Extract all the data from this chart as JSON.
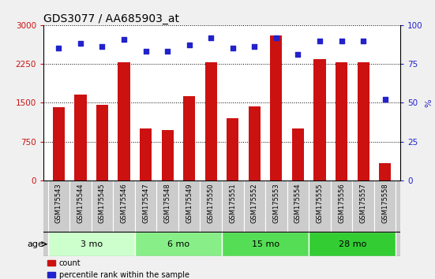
{
  "title": "GDS3077 / AA685903_at",
  "samples": [
    "GSM175543",
    "GSM175544",
    "GSM175545",
    "GSM175546",
    "GSM175547",
    "GSM175548",
    "GSM175549",
    "GSM175550",
    "GSM175551",
    "GSM175552",
    "GSM175553",
    "GSM175554",
    "GSM175555",
    "GSM175556",
    "GSM175557",
    "GSM175558"
  ],
  "counts": [
    1420,
    1650,
    1460,
    2280,
    1000,
    970,
    1620,
    2280,
    1200,
    1430,
    2800,
    1000,
    2350,
    2280,
    2280,
    330
  ],
  "percentile_ranks": [
    85,
    88,
    86,
    91,
    83,
    83,
    87,
    92,
    85,
    86,
    92,
    81,
    90,
    90,
    90,
    52
  ],
  "bar_color": "#cc1111",
  "dot_color": "#2222cc",
  "left_ylim": [
    0,
    3000
  ],
  "right_ylim": [
    0,
    100
  ],
  "left_yticks": [
    0,
    750,
    1500,
    2250,
    3000
  ],
  "right_yticks": [
    0,
    25,
    50,
    75,
    100
  ],
  "age_groups": [
    {
      "label": "3 mo",
      "start": 0,
      "end": 4,
      "color": "#ccffcc"
    },
    {
      "label": "6 mo",
      "start": 4,
      "end": 8,
      "color": "#88ee88"
    },
    {
      "label": "15 mo",
      "start": 8,
      "end": 12,
      "color": "#55dd55"
    },
    {
      "label": "28 mo",
      "start": 12,
      "end": 16,
      "color": "#33cc33"
    }
  ],
  "tick_bg_color": "#cccccc",
  "age_border_color": "#888888",
  "legend_count_label": "count",
  "legend_pct_label": "percentile rank within the sample",
  "fig_bg_color": "#f0f0f0"
}
